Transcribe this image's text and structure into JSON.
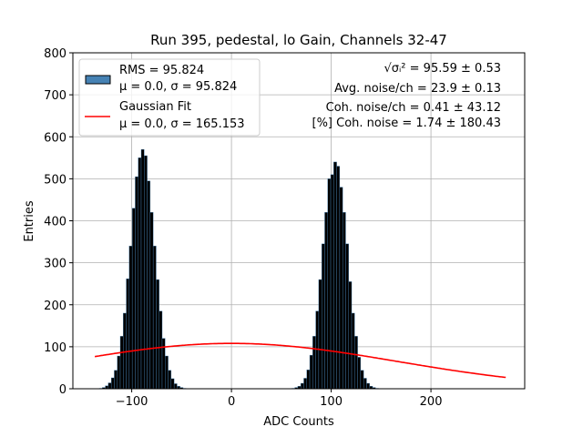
{
  "chart_data": {
    "type": "bar",
    "title": "Run 395, pedestal, lo Gain, Channels 32-47",
    "xlabel": "ADC Counts",
    "ylabel": "Entries",
    "xlim": [
      -159,
      294
    ],
    "ylim": [
      0,
      800
    ],
    "xticks": [
      {
        "v": -100,
        "l": "−100"
      },
      {
        "v": 0,
        "l": "0"
      },
      {
        "v": 100,
        "l": "100"
      },
      {
        "v": 200,
        "l": "200"
      }
    ],
    "yticks": [
      0,
      100,
      200,
      300,
      400,
      500,
      600,
      700,
      800
    ],
    "grid": true,
    "bin_width": 3,
    "histogram": {
      "bin_centers": [
        -131,
        -128,
        -125,
        -122,
        -119,
        -116,
        -113,
        -110,
        -107,
        -104,
        -101,
        -98,
        -95,
        -92,
        -89,
        -86,
        -83,
        -80,
        -77,
        -74,
        -71,
        -68,
        -65,
        -62,
        -59,
        -56,
        -53,
        -50,
        -47,
        62,
        65,
        68,
        71,
        74,
        77,
        80,
        83,
        86,
        89,
        92,
        95,
        98,
        101,
        104,
        107,
        110,
        113,
        116,
        119,
        122,
        125,
        128,
        131,
        134,
        137,
        140,
        143,
        146
      ],
      "counts": [
        1,
        3,
        7,
        14,
        26,
        44,
        78,
        125,
        180,
        262,
        340,
        430,
        505,
        550,
        570,
        555,
        495,
        420,
        340,
        260,
        185,
        120,
        78,
        44,
        24,
        12,
        6,
        3,
        1,
        1,
        3,
        6,
        13,
        25,
        45,
        80,
        125,
        185,
        260,
        345,
        420,
        500,
        510,
        540,
        530,
        480,
        420,
        345,
        255,
        180,
        125,
        75,
        44,
        25,
        13,
        6,
        3,
        1
      ]
    },
    "fit": {
      "name": "Gaussian Fit",
      "amplitude": 108,
      "mu": 0,
      "sigma": 165.153,
      "x_range": [
        -137,
        275
      ],
      "color": "#ff0000"
    },
    "legend": {
      "placement": "top-left",
      "entries": [
        {
          "line1": "RMS = 95.824",
          "line2": "μ = 0.0, σ = 95.824",
          "color": "#4682b4"
        },
        {
          "line1": "Gaussian Fit",
          "line2": "μ = 0.0, σ = 165.153",
          "color": "#ff0000"
        }
      ]
    },
    "annotations": [
      "√σᵢ² = 95.59 ± 0.53",
      "Avg. noise/ch = 23.9 ± 0.13",
      "Coh. noise/ch = 0.41 ± 43.12",
      "[%] Coh. noise = 1.74 ± 180.43"
    ]
  }
}
